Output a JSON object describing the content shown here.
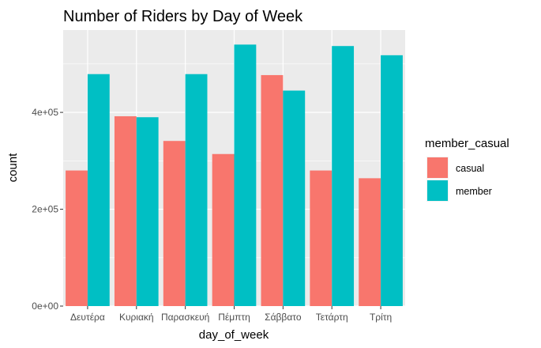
{
  "chart_data": {
    "type": "bar",
    "title": "Number of Riders by Day of Week",
    "xlabel": "day_of_week",
    "ylabel": "count",
    "categories": [
      "Δευτέρα",
      "Κυριακή",
      "Παρασκευή",
      "Πέμπτη",
      "Σάββατο",
      "Τετάρτη",
      "Τρίτη"
    ],
    "series": [
      {
        "name": "casual",
        "values": [
          280000,
          392000,
          341000,
          314000,
          477000,
          280000,
          264000
        ]
      },
      {
        "name": "member",
        "values": [
          479000,
          390000,
          479000,
          540000,
          445000,
          537000,
          518000
        ]
      }
    ],
    "ylim": [
      0,
      570000
    ],
    "yticks": [
      0,
      200000,
      400000
    ],
    "ytick_labels": [
      "0e+00",
      "2e+05",
      "4e+05"
    ],
    "legend": {
      "title": "member_casual",
      "position": "right"
    },
    "grid": true,
    "colors": {
      "casual": "#F8766D",
      "member": "#00BFC4",
      "panel": "#EBEBEB",
      "grid": "#FFFFFF"
    }
  }
}
